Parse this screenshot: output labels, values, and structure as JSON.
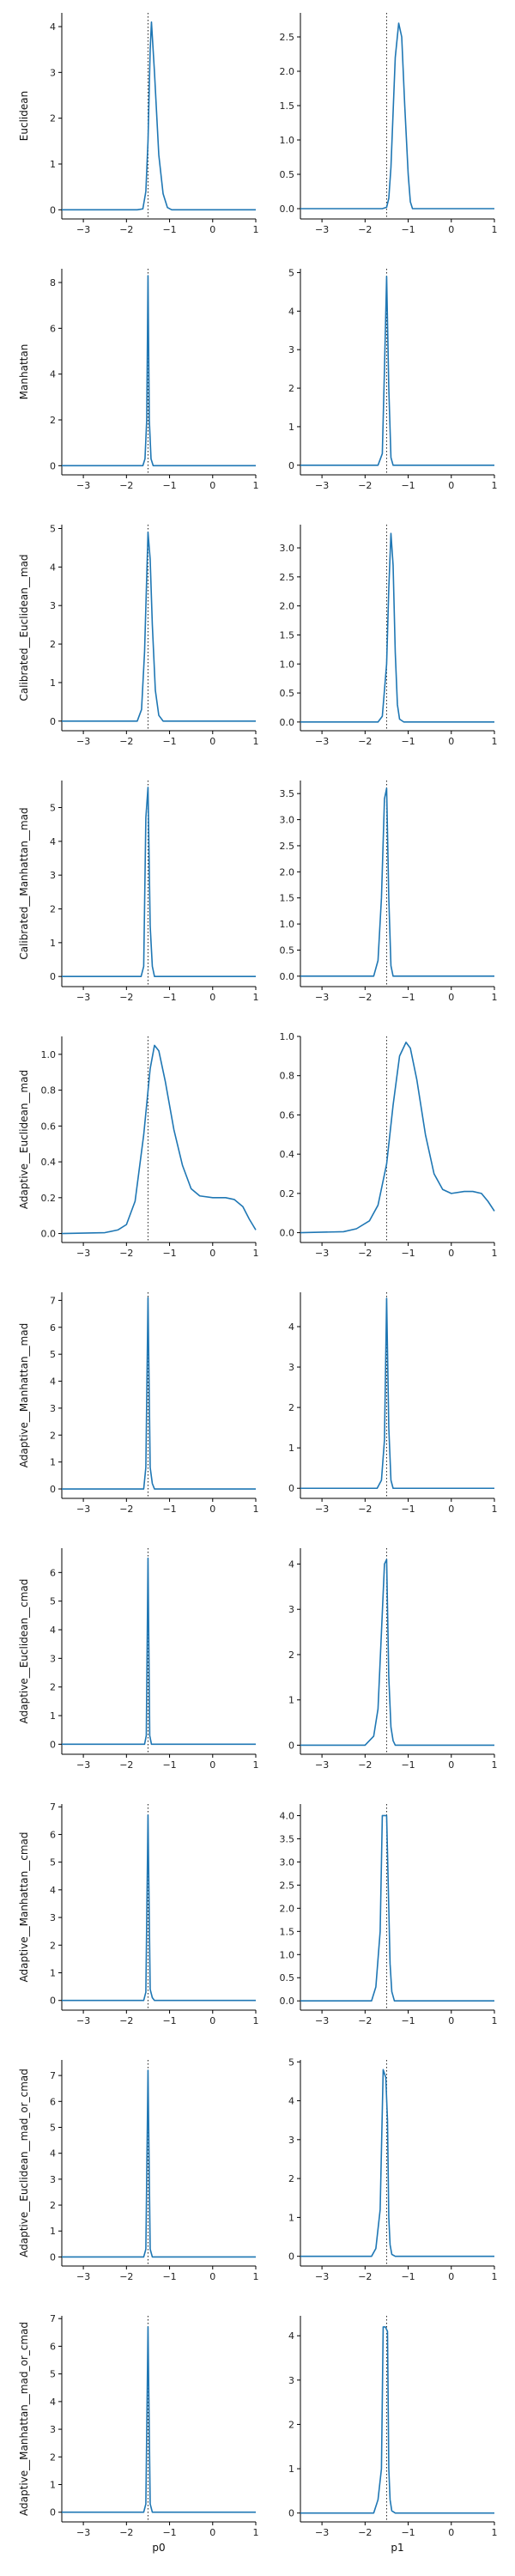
{
  "xlabels": [
    "p0",
    "p1"
  ],
  "chart_data": [
    {
      "type": "line",
      "row": "Euclidean",
      "col": "p0",
      "ylabel": "Euclidean",
      "xlabel": "",
      "xlim": [
        -3.5,
        1
      ],
      "ylim": [
        -0.2,
        4.3
      ],
      "yticks": [
        0,
        1,
        2,
        3,
        4
      ],
      "xticks": [
        -3,
        -2,
        -1,
        0,
        1
      ],
      "vline": -1.5,
      "x": [
        -3.5,
        -1.75,
        -1.62,
        -1.55,
        -1.5,
        -1.45,
        -1.42,
        -1.35,
        -1.25,
        -1.15,
        -1.05,
        -0.95,
        1
      ],
      "series": [
        {
          "values": [
            0,
            0,
            0.02,
            0.4,
            1.5,
            3.5,
            4.1,
            3.0,
            1.2,
            0.35,
            0.05,
            0.0,
            0
          ]
        }
      ]
    },
    {
      "type": "line",
      "row": "Euclidean",
      "col": "p1",
      "ylabel": "",
      "xlabel": "",
      "xlim": [
        -3.5,
        1
      ],
      "ylim": [
        -0.15,
        2.85
      ],
      "yticks": [
        0,
        0.5,
        1,
        1.5,
        2,
        2.5
      ],
      "yticklabels": [
        "0.0",
        "0.5",
        "1.0",
        "1.5",
        "2.0",
        "2.5"
      ],
      "xticks": [
        -3,
        -2,
        -1,
        0,
        1
      ],
      "vline": -1.5,
      "x": [
        -3.5,
        -1.6,
        -1.5,
        -1.45,
        -1.4,
        -1.35,
        -1.3,
        -1.22,
        -1.15,
        -1.08,
        -1.0,
        -0.95,
        -0.9,
        1
      ],
      "series": [
        {
          "values": [
            0,
            0,
            0.02,
            0.15,
            0.6,
            1.4,
            2.2,
            2.7,
            2.5,
            1.5,
            0.5,
            0.1,
            0.0,
            0
          ]
        }
      ]
    },
    {
      "type": "line",
      "row": "Manhattan",
      "col": "p0",
      "ylabel": "Manhattan",
      "xlabel": "",
      "xlim": [
        -3.5,
        1
      ],
      "ylim": [
        -0.4,
        8.6
      ],
      "yticks": [
        0,
        2,
        4,
        6,
        8
      ],
      "xticks": [
        -3,
        -2,
        -1,
        0,
        1
      ],
      "vline": -1.5,
      "x": [
        -3.5,
        -1.62,
        -1.57,
        -1.53,
        -1.5,
        -1.47,
        -1.43,
        -1.38,
        1
      ],
      "series": [
        {
          "values": [
            0,
            0,
            0.3,
            2.0,
            8.3,
            2.0,
            0.3,
            0,
            0
          ]
        }
      ]
    },
    {
      "type": "line",
      "row": "Manhattan",
      "col": "p1",
      "ylabel": "",
      "xlabel": "",
      "xlim": [
        -3.5,
        1
      ],
      "ylim": [
        -0.25,
        5.1
      ],
      "yticks": [
        0,
        1,
        2,
        3,
        4,
        5
      ],
      "xticks": [
        -3,
        -2,
        -1,
        0,
        1
      ],
      "vline": -1.5,
      "x": [
        -3.5,
        -1.7,
        -1.6,
        -1.55,
        -1.5,
        -1.45,
        -1.4,
        -1.35,
        1
      ],
      "series": [
        {
          "values": [
            0,
            0,
            0.3,
            2.5,
            4.9,
            2.0,
            0.2,
            0,
            0
          ]
        }
      ]
    },
    {
      "type": "line",
      "row": "Calibrated__Euclidean__mad",
      "col": "p0",
      "ylabel": "Calibrated__Euclidean__mad",
      "xlabel": "",
      "xlim": [
        -3.5,
        1
      ],
      "ylim": [
        -0.25,
        5.1
      ],
      "yticks": [
        0,
        1,
        2,
        3,
        4,
        5
      ],
      "xticks": [
        -3,
        -2,
        -1,
        0,
        1
      ],
      "vline": -1.5,
      "x": [
        -3.5,
        -1.75,
        -1.65,
        -1.58,
        -1.5,
        -1.45,
        -1.4,
        -1.33,
        -1.25,
        -1.15,
        1
      ],
      "series": [
        {
          "values": [
            0,
            0,
            0.3,
            1.8,
            4.9,
            4.2,
            2.5,
            0.8,
            0.15,
            0,
            0
          ]
        }
      ]
    },
    {
      "type": "line",
      "row": "Calibrated__Euclidean__mad",
      "col": "p1",
      "ylabel": "",
      "xlabel": "",
      "xlim": [
        -3.5,
        1
      ],
      "ylim": [
        -0.15,
        3.4
      ],
      "yticks": [
        0,
        0.5,
        1,
        1.5,
        2,
        2.5,
        3
      ],
      "yticklabels": [
        "0.0",
        "0.5",
        "1.0",
        "1.5",
        "2.0",
        "2.5",
        "3.0"
      ],
      "xticks": [
        -3,
        -2,
        -1,
        0,
        1
      ],
      "vline": -1.5,
      "x": [
        -3.5,
        -1.7,
        -1.6,
        -1.5,
        -1.45,
        -1.4,
        -1.35,
        -1.3,
        -1.25,
        -1.2,
        -1.1,
        1
      ],
      "series": [
        {
          "values": [
            0,
            0,
            0.1,
            1.0,
            2.3,
            3.25,
            2.7,
            1.2,
            0.3,
            0.05,
            0,
            0
          ]
        }
      ]
    },
    {
      "type": "line",
      "row": "Calibrated__Manhattan__mad",
      "col": "p0",
      "ylabel": "Calibrated__Manhattan__mad",
      "xlabel": "",
      "xlim": [
        -3.5,
        1
      ],
      "ylim": [
        -0.3,
        5.8
      ],
      "yticks": [
        0,
        1,
        2,
        3,
        4,
        5
      ],
      "xticks": [
        -3,
        -2,
        -1,
        0,
        1
      ],
      "vline": -1.5,
      "x": [
        -3.5,
        -1.66,
        -1.6,
        -1.55,
        -1.5,
        -1.45,
        -1.4,
        -1.35,
        1
      ],
      "series": [
        {
          "values": [
            0,
            0,
            0.3,
            4.7,
            5.6,
            1.5,
            0.3,
            0,
            0
          ]
        }
      ]
    },
    {
      "type": "line",
      "row": "Calibrated__Manhattan__mad",
      "col": "p1",
      "ylabel": "",
      "xlabel": "",
      "xlim": [
        -3.5,
        1
      ],
      "ylim": [
        -0.2,
        3.75
      ],
      "yticks": [
        0,
        0.5,
        1,
        1.5,
        2,
        2.5,
        3,
        3.5
      ],
      "yticklabels": [
        "0.0",
        "0.5",
        "1.0",
        "1.5",
        "2.0",
        "2.5",
        "3.0",
        "3.5"
      ],
      "xticks": [
        -3,
        -2,
        -1,
        0,
        1
      ],
      "vline": -1.5,
      "x": [
        -3.5,
        -1.8,
        -1.7,
        -1.62,
        -1.55,
        -1.5,
        -1.45,
        -1.4,
        -1.35,
        1
      ],
      "series": [
        {
          "values": [
            0,
            0,
            0.3,
            1.5,
            3.4,
            3.6,
            1.5,
            0.2,
            0,
            0
          ]
        }
      ]
    },
    {
      "type": "line",
      "row": "Adaptive__Euclidean__mad",
      "col": "p0",
      "ylabel": "Adaptive__Euclidean__mad",
      "xlabel": "",
      "xlim": [
        -3.5,
        1
      ],
      "ylim": [
        -0.05,
        1.1
      ],
      "yticks": [
        0,
        0.2,
        0.4,
        0.6,
        0.8,
        1
      ],
      "yticklabels": [
        "0.0",
        "0.2",
        "0.4",
        "0.6",
        "0.8",
        "1.0"
      ],
      "xticks": [
        -3,
        -2,
        -1,
        0,
        1
      ],
      "vline": -1.5,
      "x": [
        -3.5,
        -2.5,
        -2.2,
        -2.0,
        -1.8,
        -1.6,
        -1.45,
        -1.35,
        -1.25,
        -1.1,
        -0.9,
        -0.7,
        -0.5,
        -0.3,
        0,
        0.3,
        0.5,
        0.7,
        0.85,
        1
      ],
      "series": [
        {
          "values": [
            0,
            0.005,
            0.02,
            0.05,
            0.18,
            0.55,
            0.92,
            1.05,
            1.02,
            0.85,
            0.58,
            0.38,
            0.25,
            0.21,
            0.2,
            0.2,
            0.19,
            0.15,
            0.08,
            0.02
          ]
        }
      ]
    },
    {
      "type": "line",
      "row": "Adaptive__Euclidean__mad",
      "col": "p1",
      "ylabel": "",
      "xlabel": "",
      "xlim": [
        -3.5,
        1
      ],
      "ylim": [
        -0.05,
        1.0
      ],
      "yticks": [
        0,
        0.2,
        0.4,
        0.6,
        0.8,
        1
      ],
      "yticklabels": [
        "0.0",
        "0.2",
        "0.4",
        "0.6",
        "0.8",
        "1.0"
      ],
      "xticks": [
        -3,
        -2,
        -1,
        0,
        1
      ],
      "vline": -1.5,
      "x": [
        -3.5,
        -2.5,
        -2.2,
        -1.9,
        -1.7,
        -1.5,
        -1.35,
        -1.2,
        -1.05,
        -0.95,
        -0.8,
        -0.6,
        -0.4,
        -0.2,
        0,
        0.3,
        0.5,
        0.7,
        0.85,
        1
      ],
      "series": [
        {
          "values": [
            0,
            0.005,
            0.02,
            0.06,
            0.14,
            0.35,
            0.65,
            0.9,
            0.97,
            0.94,
            0.78,
            0.5,
            0.3,
            0.22,
            0.2,
            0.21,
            0.21,
            0.2,
            0.16,
            0.11
          ]
        }
      ]
    },
    {
      "type": "line",
      "row": "Adaptive__Manhattan__mad",
      "col": "p0",
      "ylabel": "Adaptive__Manhattan__mad",
      "xlabel": "",
      "xlim": [
        -3.5,
        1
      ],
      "ylim": [
        -0.35,
        7.3
      ],
      "yticks": [
        0,
        1,
        2,
        3,
        4,
        5,
        6,
        7
      ],
      "xticks": [
        -3,
        -2,
        -1,
        0,
        1
      ],
      "vline": -1.5,
      "x": [
        -3.5,
        -1.6,
        -1.55,
        -1.5,
        -1.45,
        -1.4,
        -1.35,
        1
      ],
      "series": [
        {
          "values": [
            0,
            0,
            0.8,
            7.1,
            0.8,
            0.2,
            0,
            0
          ]
        }
      ]
    },
    {
      "type": "line",
      "row": "Adaptive__Manhattan__mad",
      "col": "p1",
      "ylabel": "",
      "xlabel": "",
      "xlim": [
        -3.5,
        1
      ],
      "ylim": [
        -0.25,
        4.85
      ],
      "yticks": [
        0,
        1,
        2,
        3,
        4
      ],
      "xticks": [
        -3,
        -2,
        -1,
        0,
        1
      ],
      "vline": -1.5,
      "x": [
        -3.5,
        -1.72,
        -1.62,
        -1.55,
        -1.5,
        -1.45,
        -1.4,
        -1.35,
        1
      ],
      "series": [
        {
          "values": [
            0,
            0,
            0.2,
            1.2,
            4.7,
            1.5,
            0.2,
            0,
            0
          ]
        }
      ]
    },
    {
      "type": "line",
      "row": "Adaptive__Euclidean__cmad",
      "col": "p0",
      "ylabel": "Adaptive__Euclidean__cmad",
      "xlabel": "",
      "xlim": [
        -3.5,
        1
      ],
      "ylim": [
        -0.35,
        6.85
      ],
      "yticks": [
        0,
        1,
        2,
        3,
        4,
        5,
        6
      ],
      "xticks": [
        -3,
        -2,
        -1,
        0,
        1
      ],
      "vline": -1.5,
      "x": [
        -3.5,
        -1.58,
        -1.54,
        -1.5,
        -1.46,
        -1.42,
        1
      ],
      "series": [
        {
          "values": [
            0,
            0,
            0.3,
            6.5,
            0.3,
            0,
            0
          ]
        }
      ]
    },
    {
      "type": "line",
      "row": "Adaptive__Euclidean__cmad",
      "col": "p1",
      "ylabel": "",
      "xlabel": "",
      "xlim": [
        -3.5,
        1
      ],
      "ylim": [
        -0.2,
        4.35
      ],
      "yticks": [
        0,
        1,
        2,
        3,
        4
      ],
      "xticks": [
        -3,
        -2,
        -1,
        0,
        1
      ],
      "vline": -1.5,
      "x": [
        -3.5,
        -2.0,
        -1.8,
        -1.7,
        -1.62,
        -1.55,
        -1.5,
        -1.45,
        -1.4,
        -1.35,
        -1.3,
        1
      ],
      "series": [
        {
          "values": [
            0,
            0,
            0.2,
            0.8,
            2.5,
            4.0,
            4.1,
            1.5,
            0.4,
            0.1,
            0,
            0
          ]
        }
      ]
    },
    {
      "type": "line",
      "row": "Adaptive__Manhattan__cmad",
      "col": "p0",
      "ylabel": "Adaptive__Manhattan__cmad",
      "xlabel": "",
      "xlim": [
        -3.5,
        1
      ],
      "ylim": [
        -0.35,
        7.1
      ],
      "yticks": [
        0,
        1,
        2,
        3,
        4,
        5,
        6,
        7
      ],
      "xticks": [
        -3,
        -2,
        -1,
        0,
        1
      ],
      "vline": -1.5,
      "x": [
        -3.5,
        -1.6,
        -1.55,
        -1.5,
        -1.45,
        -1.4,
        -1.35,
        1
      ],
      "series": [
        {
          "values": [
            0,
            0,
            0.3,
            6.7,
            0.4,
            0.1,
            0,
            0
          ]
        }
      ]
    },
    {
      "type": "line",
      "row": "Adaptive__Manhattan__cmad",
      "col": "p1",
      "ylabel": "",
      "xlabel": "",
      "xlim": [
        -3.5,
        1
      ],
      "ylim": [
        -0.2,
        4.25
      ],
      "yticks": [
        0,
        0.5,
        1,
        1.5,
        2,
        2.5,
        3,
        3.5,
        4
      ],
      "yticklabels": [
        "0.0",
        "0.5",
        "1.0",
        "1.5",
        "2.0",
        "2.5",
        "3.0",
        "3.5",
        "4.0"
      ],
      "xticks": [
        -3,
        -2,
        -1,
        0,
        1
      ],
      "vline": -1.5,
      "x": [
        -3.5,
        -1.85,
        -1.75,
        -1.65,
        -1.6,
        -1.55,
        -1.5,
        -1.45,
        -1.42,
        -1.38,
        -1.32,
        1
      ],
      "series": [
        {
          "values": [
            0,
            0,
            0.3,
            1.5,
            4.0,
            4.0,
            4.0,
            2.0,
            0.8,
            0.2,
            0,
            0
          ]
        }
      ]
    },
    {
      "type": "line",
      "row": "Adaptive__Euclidean__mad_or_cmad",
      "col": "p0",
      "ylabel": "Adaptive__Euclidean__mad_or_cmad",
      "xlabel": "",
      "xlim": [
        -3.5,
        1
      ],
      "ylim": [
        -0.35,
        7.6
      ],
      "yticks": [
        0,
        1,
        2,
        3,
        4,
        5,
        6,
        7
      ],
      "xticks": [
        -3,
        -2,
        -1,
        0,
        1
      ],
      "vline": -1.5,
      "x": [
        -3.5,
        -1.6,
        -1.55,
        -1.5,
        -1.45,
        -1.4,
        1
      ],
      "series": [
        {
          "values": [
            0,
            0,
            0.3,
            7.2,
            0.3,
            0,
            0
          ]
        }
      ]
    },
    {
      "type": "line",
      "row": "Adaptive__Euclidean__mad_or_cmad",
      "col": "p1",
      "ylabel": "",
      "xlabel": "",
      "xlim": [
        -3.5,
        1
      ],
      "ylim": [
        -0.25,
        5.05
      ],
      "yticks": [
        0,
        1,
        2,
        3,
        4,
        5
      ],
      "xticks": [
        -3,
        -2,
        -1,
        0,
        1
      ],
      "vline": -1.5,
      "x": [
        -3.5,
        -1.85,
        -1.75,
        -1.65,
        -1.58,
        -1.52,
        -1.48,
        -1.45,
        -1.42,
        -1.38,
        -1.3,
        1
      ],
      "series": [
        {
          "values": [
            0,
            0,
            0.2,
            1.2,
            4.8,
            4.6,
            3.5,
            1.0,
            0.3,
            0.05,
            0,
            0
          ]
        }
      ]
    },
    {
      "type": "line",
      "row": "Adaptive__Manhattan__mad_or_cmad",
      "col": "p0",
      "ylabel": "Adaptive__Manhattan__mad_or_cmad",
      "xlabel": "p0",
      "xlim": [
        -3.5,
        1
      ],
      "ylim": [
        -0.35,
        7.1
      ],
      "yticks": [
        0,
        1,
        2,
        3,
        4,
        5,
        6,
        7
      ],
      "xticks": [
        -3,
        -2,
        -1,
        0,
        1
      ],
      "vline": -1.5,
      "x": [
        -3.5,
        -1.6,
        -1.55,
        -1.5,
        -1.45,
        -1.4,
        1
      ],
      "series": [
        {
          "values": [
            0,
            0,
            0.3,
            6.7,
            0.3,
            0,
            0
          ]
        }
      ]
    },
    {
      "type": "line",
      "row": "Adaptive__Manhattan__mad_or_cmad",
      "col": "p1",
      "ylabel": "",
      "xlabel": "p1",
      "xlim": [
        -3.5,
        1
      ],
      "ylim": [
        -0.2,
        4.45
      ],
      "yticks": [
        0,
        1,
        2,
        3,
        4
      ],
      "xticks": [
        -3,
        -2,
        -1,
        0,
        1
      ],
      "vline": -1.5,
      "x": [
        -3.5,
        -1.8,
        -1.7,
        -1.62,
        -1.58,
        -1.53,
        -1.48,
        -1.45,
        -1.42,
        -1.38,
        -1.3,
        1
      ],
      "series": [
        {
          "values": [
            0,
            0,
            0.3,
            1.0,
            4.2,
            4.2,
            4.1,
            1.0,
            0.3,
            0.05,
            0,
            0
          ]
        }
      ]
    }
  ],
  "colors": {
    "line": "#1f77b4",
    "axis": "#000000",
    "vline": "#222222",
    "text": "#222222"
  }
}
